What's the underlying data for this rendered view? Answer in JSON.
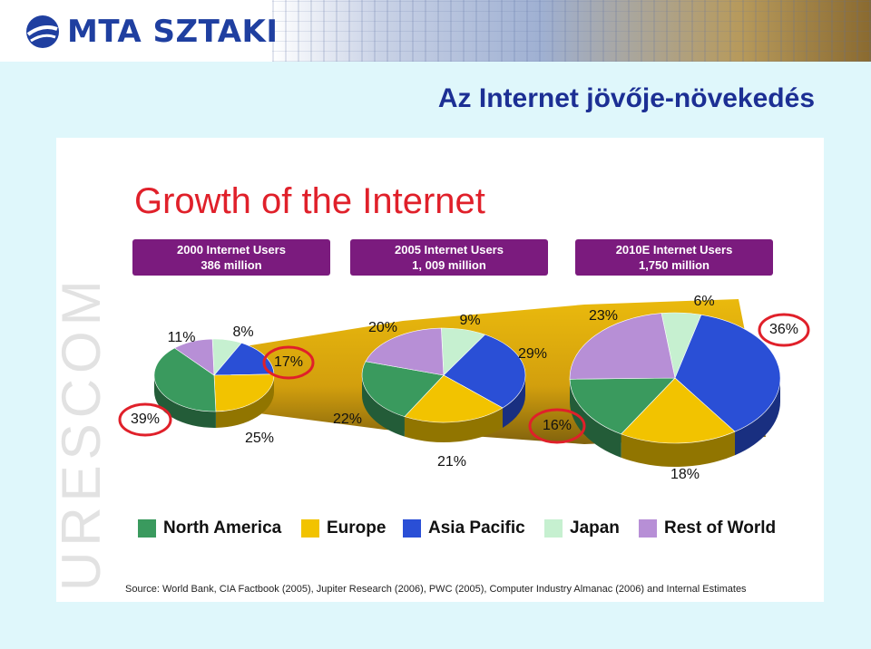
{
  "header": {
    "logo_text": "MTA SZTAKI",
    "slide_title": "Az Internet jövője-növekedés",
    "side_watermark": "URESCOM"
  },
  "chart_data": {
    "type": "pie",
    "title": "Growth of the Internet",
    "legend": [
      {
        "name": "North America",
        "color": "#3a9a5e"
      },
      {
        "name": "Europe",
        "color": "#f2c300"
      },
      {
        "name": "Asia Pacific",
        "color": "#2a4fd6"
      },
      {
        "name": "Japan",
        "color": "#c6f0d0"
      },
      {
        "name": "Rest of World",
        "color": "#b78fd6"
      }
    ],
    "legend_placement": "bottom",
    "series": [
      {
        "heading": "2000 Internet Users",
        "total": "386 million",
        "slices": [
          {
            "category": "North America",
            "value": 39,
            "label": "39%"
          },
          {
            "category": "Europe",
            "value": 25,
            "label": "25%"
          },
          {
            "category": "Asia Pacific",
            "value": 17,
            "label": "17%"
          },
          {
            "category": "Japan",
            "value": 8,
            "label": "8%"
          },
          {
            "category": "Rest of World",
            "value": 11,
            "label": "11%"
          }
        ]
      },
      {
        "heading": "2005 Internet Users",
        "total": "1, 009 million",
        "slices": [
          {
            "category": "North America",
            "value": 22,
            "label": "22%"
          },
          {
            "category": "Europe",
            "value": 21,
            "label": "21%"
          },
          {
            "category": "Asia Pacific",
            "value": 29,
            "label": "29%"
          },
          {
            "category": "Japan",
            "value": 9,
            "label": "9%"
          },
          {
            "category": "Rest of World",
            "value": 20,
            "label": "20%"
          }
        ]
      },
      {
        "heading": "2010E Internet Users",
        "total": "1,750 million",
        "slices": [
          {
            "category": "North America",
            "value": 16,
            "label": "16%"
          },
          {
            "category": "Europe",
            "value": 18,
            "label": "18%"
          },
          {
            "category": "Asia Pacific",
            "value": 36,
            "label": "36%"
          },
          {
            "category": "Japan",
            "value": 6,
            "label": "6%"
          },
          {
            "category": "Rest of World",
            "value": 23,
            "label": "23%"
          }
        ]
      }
    ],
    "highlighted": [
      "39%",
      "17%",
      "16%",
      "36%"
    ],
    "highlight_color": "#e0202a",
    "source": "Source: World Bank, CIA Factbook (2005), Jupiter Research (2006), PWC (2005), Computer Industry Almanac (2006) and Internal Estimates"
  }
}
